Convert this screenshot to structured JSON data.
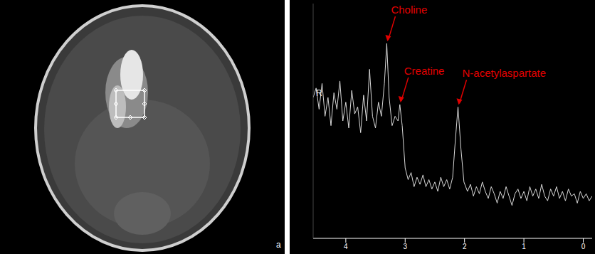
{
  "image": {
    "panel_label": "a"
  },
  "chart_data": {
    "type": "line",
    "side_label": "R",
    "x": [
      4.55,
      4.5,
      4.45,
      4.4,
      4.35,
      4.3,
      4.25,
      4.2,
      4.15,
      4.1,
      4.05,
      4.0,
      3.95,
      3.9,
      3.85,
      3.8,
      3.75,
      3.7,
      3.65,
      3.6,
      3.55,
      3.5,
      3.45,
      3.4,
      3.35,
      3.31,
      3.27,
      3.22,
      3.17,
      3.12,
      3.09,
      3.05,
      3.0,
      2.95,
      2.9,
      2.85,
      2.8,
      2.75,
      2.7,
      2.65,
      2.6,
      2.55,
      2.5,
      2.45,
      2.4,
      2.35,
      2.3,
      2.25,
      2.2,
      2.16,
      2.11,
      2.06,
      2.01,
      1.95,
      1.9,
      1.85,
      1.8,
      1.75,
      1.7,
      1.65,
      1.6,
      1.55,
      1.5,
      1.45,
      1.4,
      1.35,
      1.3,
      1.25,
      1.2,
      1.15,
      1.1,
      1.05,
      1.0,
      0.95,
      0.9,
      0.85,
      0.8,
      0.75,
      0.7,
      0.65,
      0.6,
      0.55,
      0.5,
      0.45,
      0.4,
      0.35,
      0.3,
      0.25,
      0.2,
      0.15,
      0.1,
      0.05,
      0.0,
      -0.05,
      -0.1,
      -0.15
    ],
    "values": [
      60,
      64,
      55,
      66,
      52,
      60,
      48,
      62,
      55,
      67,
      50,
      58,
      47,
      63,
      53,
      56,
      45,
      61,
      50,
      72,
      52,
      47,
      58,
      52,
      66,
      83,
      60,
      48,
      52,
      50,
      57,
      48,
      30,
      25,
      28,
      22,
      26,
      23,
      27,
      22,
      25,
      21,
      24,
      20,
      26,
      22,
      25,
      21,
      26,
      40,
      56,
      38,
      24,
      20,
      23,
      18,
      22,
      19,
      24,
      20,
      17,
      22,
      19,
      15,
      20,
      17,
      22,
      18,
      14,
      19,
      21,
      17,
      20,
      16,
      22,
      18,
      21,
      17,
      23,
      18,
      16,
      21,
      18,
      22,
      17,
      20,
      16,
      21,
      18,
      19,
      15,
      20,
      17,
      19,
      16,
      18
    ],
    "color": "#d9d9d9",
    "xlim": [
      4.55,
      -0.15
    ],
    "xticks": [
      4,
      3,
      2,
      1,
      0
    ],
    "ylim": [
      0,
      100
    ],
    "tick_labels": "x",
    "annotations": [
      {
        "text": "Choline",
        "x": 3.31,
        "y": 83
      },
      {
        "text": "Creatine",
        "x": 3.09,
        "y": 57
      },
      {
        "text": "N-acetylaspartate",
        "x": 2.11,
        "y": 56
      }
    ]
  }
}
